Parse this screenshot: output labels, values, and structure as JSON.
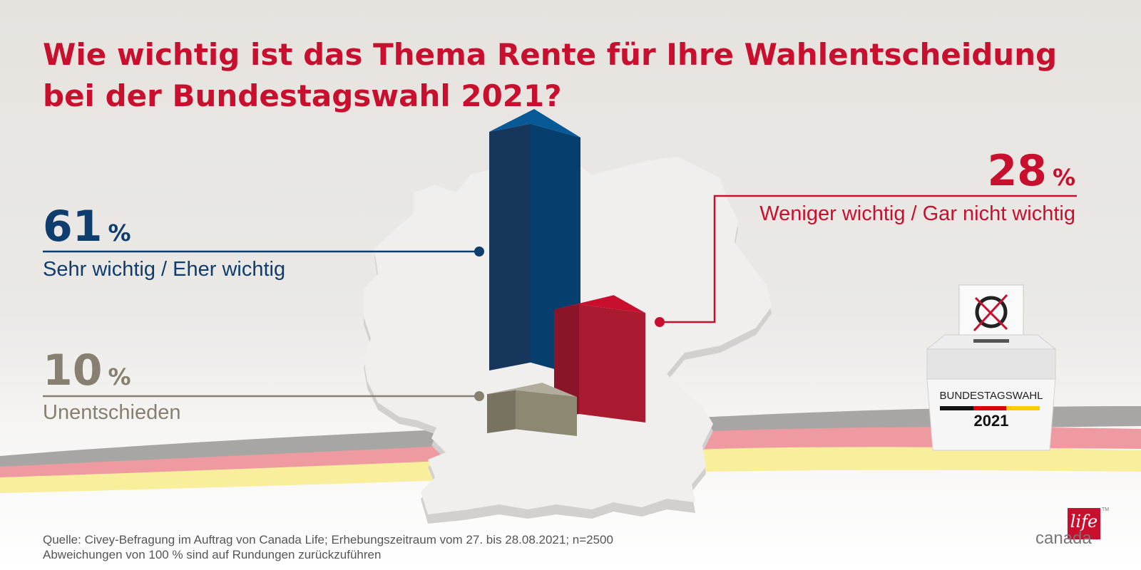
{
  "title": "Wie wichtig ist das Thema Rente für Ihre Wahlentscheidung bei der Bundestagswahl 2021?",
  "colors": {
    "title": "#c8102e",
    "important": "#0f3d6e",
    "less": "#c8102e",
    "undecided": "#878070"
  },
  "chart_data": {
    "type": "bar",
    "title": "Wie wichtig ist das Thema Rente für Ihre Wahlentscheidung bei der Bundestagswahl 2021?",
    "categories": [
      "Sehr wichtig / Eher wichtig",
      "Weniger wichtig / Gar nicht wichtig",
      "Unentschieden"
    ],
    "values": [
      61,
      28,
      10
    ],
    "unit": "%",
    "ylim": [
      0,
      100
    ]
  },
  "stats": [
    {
      "value": "61",
      "unit": "%",
      "label": "Sehr wichtig / Eher wichtig"
    },
    {
      "value": "28",
      "unit": "%",
      "label": "Weniger wichtig / Gar nicht wichtig"
    },
    {
      "value": "10",
      "unit": "%",
      "label": "Unentschieden"
    }
  ],
  "ballot_box": {
    "label": "BUNDESTAGSWAHL",
    "year": "2021"
  },
  "source": {
    "line1": "Quelle: Civey-Befragung im Auftrag von Canada Life; Erhebungszeitraum vom 27. bis 28.08.2021; n=2500",
    "line2": "Abweichungen von 100 % sind auf Rundungen zurückzuführen"
  },
  "logo": {
    "text": "canada",
    "mark": "life",
    "tm": "TM"
  }
}
